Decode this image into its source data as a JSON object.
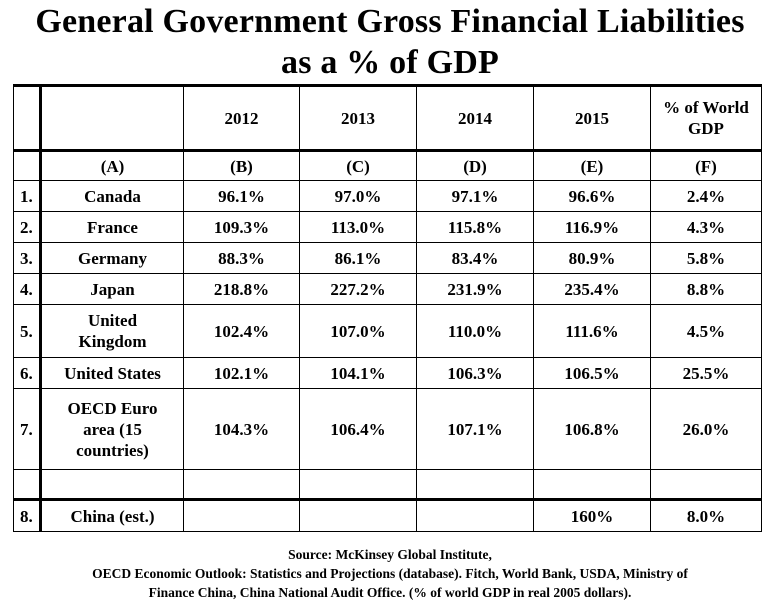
{
  "title": {
    "line1": "General Government Gross Financial Liabilities",
    "line2": "as a % of GDP"
  },
  "table": {
    "headers": [
      "",
      "",
      "2012",
      "2013",
      "2014",
      "2015",
      "% of World GDP"
    ],
    "letters": [
      "",
      "(A)",
      "(B)",
      "(C)",
      "(D)",
      "(E)",
      "(F)"
    ],
    "rows": [
      {
        "num": "1.",
        "name": "Canada",
        "v2012": "96.1%",
        "v2013": "97.0%",
        "v2014": "97.1%",
        "v2015": "96.6%",
        "world": "2.4%"
      },
      {
        "num": "2.",
        "name": "France",
        "v2012": "109.3%",
        "v2013": "113.0%",
        "v2014": "115.8%",
        "v2015": "116.9%",
        "world": "4.3%"
      },
      {
        "num": "3.",
        "name": "Germany",
        "v2012": "88.3%",
        "v2013": "86.1%",
        "v2014": "83.4%",
        "v2015": "80.9%",
        "world": "5.8%"
      },
      {
        "num": "4.",
        "name": "Japan",
        "v2012": "218.8%",
        "v2013": "227.2%",
        "v2014": "231.9%",
        "v2015": "235.4%",
        "world": "8.8%"
      },
      {
        "num": "5.",
        "name": "United Kingdom",
        "v2012": "102.4%",
        "v2013": "107.0%",
        "v2014": "110.0%",
        "v2015": "111.6%",
        "world": "4.5%"
      },
      {
        "num": "6.",
        "name": "United States",
        "v2012": "102.1%",
        "v2013": "104.1%",
        "v2014": "106.3%",
        "v2015": "106.5%",
        "world": "25.5%"
      },
      {
        "num": "7.",
        "name": "OECD Euro area (15 countries)",
        "v2012": "104.3%",
        "v2013": "106.4%",
        "v2014": "107.1%",
        "v2015": "106.8%",
        "world": "26.0%"
      }
    ],
    "china": {
      "num": "8.",
      "name": "China (est.)",
      "v2012": "",
      "v2013": "",
      "v2014": "",
      "v2015": "160%",
      "world": "8.0%"
    }
  },
  "source": {
    "line1": "Source: McKinsey Global Institute,",
    "line2": "OECD Economic Outlook: Statistics and Projections (database). Fitch, World Bank, USDA, Ministry of",
    "line3": "Finance China, China National Audit Office. (% of world GDP in real 2005 dollars)."
  }
}
